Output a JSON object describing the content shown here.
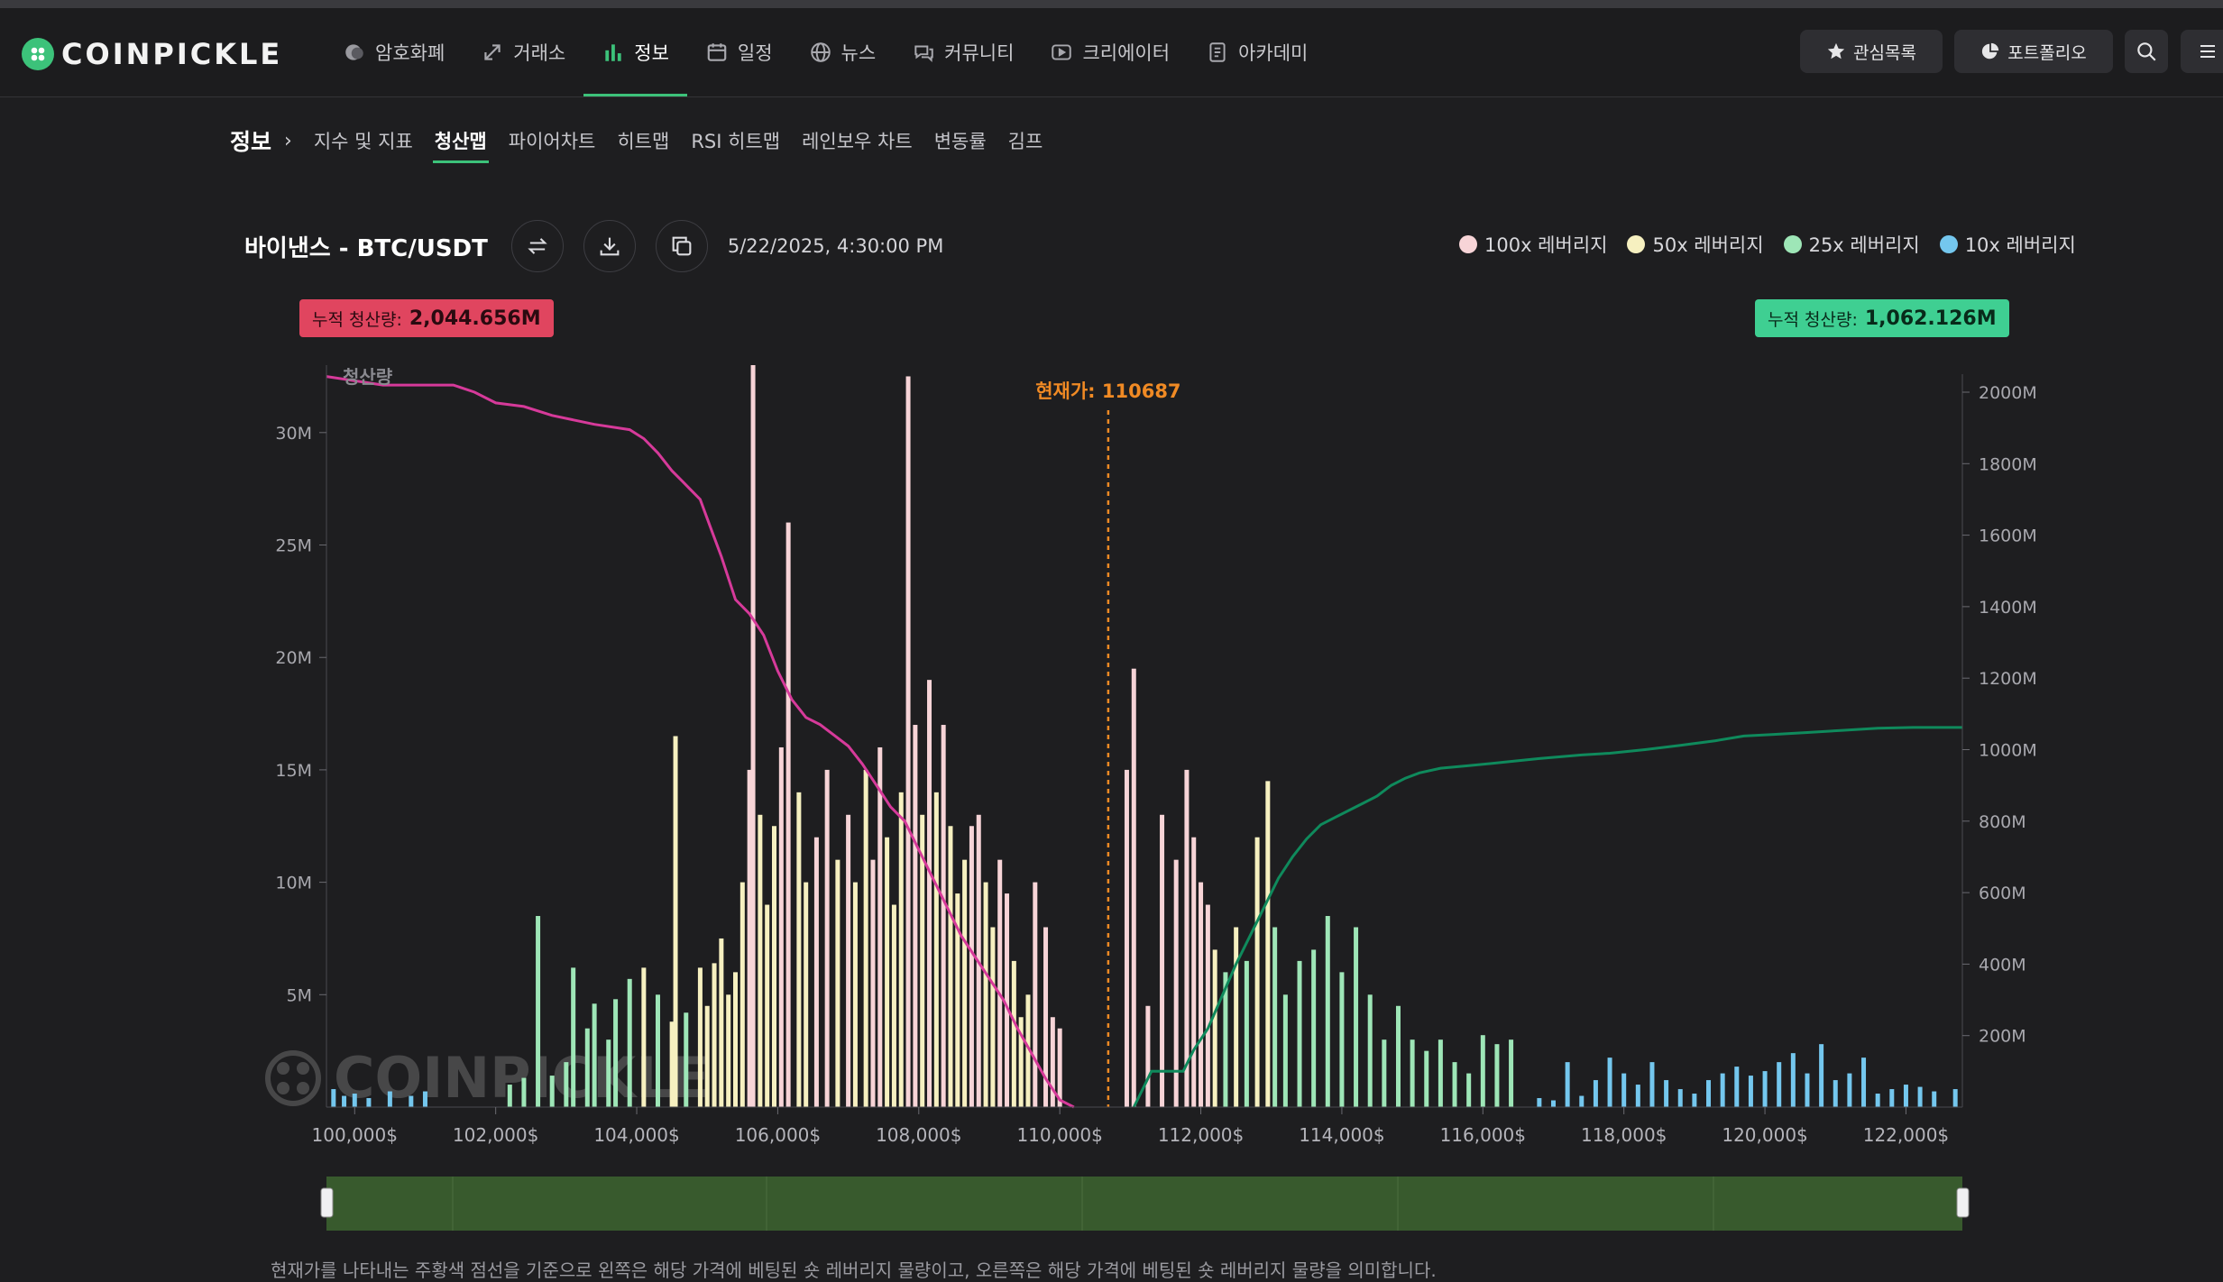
{
  "header": {
    "logo_text": "COINPICKLE",
    "nav": [
      {
        "label": "암호화폐",
        "icon": "coin-icon"
      },
      {
        "label": "거래소",
        "icon": "exchange-icon"
      },
      {
        "label": "정보",
        "icon": "bar-chart-icon",
        "active": true
      },
      {
        "label": "일정",
        "icon": "calendar-icon"
      },
      {
        "label": "뉴스",
        "icon": "globe-icon"
      },
      {
        "label": "커뮤니티",
        "icon": "chat-icon"
      },
      {
        "label": "크리에이터",
        "icon": "play-icon"
      },
      {
        "label": "아카데미",
        "icon": "book-icon"
      }
    ],
    "watchlist_label": "관심목록",
    "portfolio_label": "포트폴리오"
  },
  "subnav": {
    "crumb": "정보",
    "tabs": [
      "지수 및 지표",
      "청산맵",
      "파이어차트",
      "히트맵",
      "RSI 히트맵",
      "레인보우 차트",
      "변동률",
      "김프"
    ],
    "active_tab": "청산맵"
  },
  "chart_header": {
    "title": "바이낸스 - BTC/USDT",
    "timestamp": "5/22/2025, 4:30:00 PM"
  },
  "legend": [
    {
      "label": "100x 레버리지",
      "color": "#f7d4d7"
    },
    {
      "label": "50x 레버리지",
      "color": "#f6f0c0"
    },
    {
      "label": "25x 레버리지",
      "color": "#9ee6b7"
    },
    {
      "label": "10x 레버리지",
      "color": "#74c7ee"
    }
  ],
  "badges": {
    "left_label": "누적 청산량:",
    "left_value": "2,044.656M",
    "right_label": "누적 청산량:",
    "right_value": "1,062.126M"
  },
  "colors": {
    "short_curve": "#d63a9a",
    "long_curve": "#0f8a5c",
    "price_line": "#f08a24",
    "left_badge": "#e0455f",
    "right_badge": "#3fcf92"
  },
  "chart_data": {
    "type": "bar",
    "ylabel": "청산량",
    "current_price_label": "현재가: 110687",
    "current_price": 110687,
    "xlim": [
      99600,
      122800
    ],
    "x_ticks": [
      "100,000$",
      "102,000$",
      "104,000$",
      "106,000$",
      "108,000$",
      "110,000$",
      "112,000$",
      "114,000$",
      "116,000$",
      "118,000$",
      "120,000$",
      "122,000$"
    ],
    "x_tick_values": [
      100000,
      102000,
      104000,
      106000,
      108000,
      110000,
      112000,
      114000,
      116000,
      118000,
      120000,
      122000
    ],
    "y_left_ticks": [
      "5M",
      "10M",
      "15M",
      "20M",
      "25M",
      "30M"
    ],
    "y_left_tick_values": [
      5,
      10,
      15,
      20,
      25,
      30
    ],
    "ylim_left": [
      0,
      33
    ],
    "y_right_ticks": [
      "200M",
      "400M",
      "600M",
      "800M",
      "1000M",
      "1200M",
      "1400M",
      "1600M",
      "1800M",
      "2000M"
    ],
    "y_right_tick_values": [
      200,
      400,
      600,
      800,
      1000,
      1200,
      1400,
      1600,
      1800,
      2000
    ],
    "ylim_right": [
      0,
      2000
    ],
    "bars": [
      [
        99700,
        0.8,
        "10x"
      ],
      [
        99850,
        0.5,
        "10x"
      ],
      [
        100000,
        0.6,
        "10x"
      ],
      [
        100200,
        0.4,
        "10x"
      ],
      [
        100500,
        0.7,
        "10x"
      ],
      [
        100800,
        0.5,
        "10x"
      ],
      [
        101000,
        0.7,
        "10x"
      ],
      [
        102200,
        1.0,
        "25x"
      ],
      [
        102400,
        1.3,
        "25x"
      ],
      [
        102600,
        8.5,
        "25x"
      ],
      [
        102800,
        1.4,
        "25x"
      ],
      [
        103000,
        2.0,
        "25x"
      ],
      [
        103100,
        6.2,
        "25x"
      ],
      [
        103300,
        3.5,
        "25x"
      ],
      [
        103400,
        4.6,
        "25x"
      ],
      [
        103600,
        3.0,
        "25x"
      ],
      [
        103700,
        4.8,
        "25x"
      ],
      [
        103900,
        5.7,
        "25x"
      ],
      [
        104100,
        6.2,
        "50x"
      ],
      [
        104300,
        5.0,
        "25x"
      ],
      [
        104500,
        3.8,
        "50x"
      ],
      [
        104550,
        16.5,
        "50x"
      ],
      [
        104700,
        4.2,
        "25x"
      ],
      [
        104900,
        6.2,
        "50x"
      ],
      [
        105000,
        4.5,
        "50x"
      ],
      [
        105100,
        6.4,
        "50x"
      ],
      [
        105200,
        7.5,
        "50x"
      ],
      [
        105300,
        5.0,
        "50x"
      ],
      [
        105400,
        6.0,
        "50x"
      ],
      [
        105500,
        10.0,
        "50x"
      ],
      [
        105600,
        15.0,
        "100x"
      ],
      [
        105650,
        33.0,
        "100x"
      ],
      [
        105750,
        13.0,
        "50x"
      ],
      [
        105850,
        9.0,
        "50x"
      ],
      [
        105950,
        12.5,
        "50x"
      ],
      [
        106050,
        16.0,
        "100x"
      ],
      [
        106150,
        26.0,
        "100x"
      ],
      [
        106300,
        14.0,
        "50x"
      ],
      [
        106400,
        10.0,
        "50x"
      ],
      [
        106550,
        12.0,
        "100x"
      ],
      [
        106700,
        15.0,
        "100x"
      ],
      [
        106850,
        11.0,
        "50x"
      ],
      [
        107000,
        13.0,
        "100x"
      ],
      [
        107100,
        10.0,
        "50x"
      ],
      [
        107250,
        15.0,
        "50x"
      ],
      [
        107350,
        11.0,
        "100x"
      ],
      [
        107450,
        16.0,
        "100x"
      ],
      [
        107550,
        12.0,
        "50x"
      ],
      [
        107650,
        9.0,
        "50x"
      ],
      [
        107750,
        14.0,
        "50x"
      ],
      [
        107850,
        32.5,
        "100x"
      ],
      [
        107950,
        17.0,
        "100x"
      ],
      [
        108050,
        13.0,
        "50x"
      ],
      [
        108150,
        19.0,
        "100x"
      ],
      [
        108250,
        14.0,
        "50x"
      ],
      [
        108350,
        17.0,
        "100x"
      ],
      [
        108450,
        12.5,
        "50x"
      ],
      [
        108550,
        9.5,
        "50x"
      ],
      [
        108650,
        11.0,
        "50x"
      ],
      [
        108750,
        12.5,
        "100x"
      ],
      [
        108850,
        13.0,
        "100x"
      ],
      [
        108950,
        10.0,
        "50x"
      ],
      [
        109050,
        8.0,
        "50x"
      ],
      [
        109150,
        11.0,
        "100x"
      ],
      [
        109250,
        9.5,
        "100x"
      ],
      [
        109350,
        6.5,
        "50x"
      ],
      [
        109450,
        4.0,
        "50x"
      ],
      [
        109550,
        5.0,
        "50x"
      ],
      [
        109650,
        10.0,
        "100x"
      ],
      [
        109800,
        8.0,
        "100x"
      ],
      [
        109900,
        4.0,
        "100x"
      ],
      [
        110000,
        3.5,
        "100x"
      ],
      [
        110950,
        15.0,
        "100x"
      ],
      [
        111050,
        19.5,
        "100x"
      ],
      [
        111250,
        4.5,
        "100x"
      ],
      [
        111450,
        13.0,
        "100x"
      ],
      [
        111650,
        11.0,
        "100x"
      ],
      [
        111800,
        15.0,
        "100x"
      ],
      [
        111900,
        12.0,
        "100x"
      ],
      [
        112000,
        10.0,
        "100x"
      ],
      [
        112100,
        9.0,
        "100x"
      ],
      [
        112200,
        7.0,
        "50x"
      ],
      [
        112350,
        6.0,
        "25x"
      ],
      [
        112500,
        8.0,
        "50x"
      ],
      [
        112650,
        6.5,
        "25x"
      ],
      [
        112800,
        12.0,
        "50x"
      ],
      [
        112950,
        14.5,
        "50x"
      ],
      [
        113050,
        8.0,
        "25x"
      ],
      [
        113200,
        5.0,
        "25x"
      ],
      [
        113400,
        6.5,
        "25x"
      ],
      [
        113600,
        7.0,
        "25x"
      ],
      [
        113800,
        8.5,
        "25x"
      ],
      [
        114000,
        6.0,
        "25x"
      ],
      [
        114200,
        8.0,
        "25x"
      ],
      [
        114400,
        5.0,
        "25x"
      ],
      [
        114600,
        3.0,
        "25x"
      ],
      [
        114800,
        4.5,
        "25x"
      ],
      [
        115000,
        3.0,
        "25x"
      ],
      [
        115200,
        2.5,
        "25x"
      ],
      [
        115400,
        3.0,
        "25x"
      ],
      [
        115600,
        2.0,
        "25x"
      ],
      [
        115800,
        1.5,
        "25x"
      ],
      [
        116000,
        3.2,
        "25x"
      ],
      [
        116200,
        2.8,
        "25x"
      ],
      [
        116400,
        3.0,
        "25x"
      ],
      [
        116800,
        0.4,
        "10x"
      ],
      [
        117000,
        0.3,
        "10x"
      ],
      [
        117200,
        2.0,
        "10x"
      ],
      [
        117400,
        0.5,
        "10x"
      ],
      [
        117600,
        1.2,
        "10x"
      ],
      [
        117800,
        2.2,
        "10x"
      ],
      [
        118000,
        1.5,
        "10x"
      ],
      [
        118200,
        1.0,
        "10x"
      ],
      [
        118400,
        2.0,
        "10x"
      ],
      [
        118600,
        1.2,
        "10x"
      ],
      [
        118800,
        0.8,
        "10x"
      ],
      [
        119000,
        0.6,
        "10x"
      ],
      [
        119200,
        1.2,
        "10x"
      ],
      [
        119400,
        1.5,
        "10x"
      ],
      [
        119600,
        1.8,
        "10x"
      ],
      [
        119800,
        1.4,
        "10x"
      ],
      [
        120000,
        1.6,
        "10x"
      ],
      [
        120200,
        2.0,
        "10x"
      ],
      [
        120400,
        2.4,
        "10x"
      ],
      [
        120600,
        1.5,
        "10x"
      ],
      [
        120800,
        2.8,
        "10x"
      ],
      [
        121000,
        1.2,
        "10x"
      ],
      [
        121200,
        1.5,
        "10x"
      ],
      [
        121400,
        2.2,
        "10x"
      ],
      [
        121600,
        0.6,
        "10x"
      ],
      [
        121800,
        0.8,
        "10x"
      ],
      [
        122000,
        1.0,
        "10x"
      ],
      [
        122200,
        0.9,
        "10x"
      ],
      [
        122400,
        0.7,
        "10x"
      ],
      [
        122700,
        0.8,
        "10x"
      ]
    ],
    "short_cumulative": [
      [
        99600,
        2044
      ],
      [
        100400,
        2020
      ],
      [
        101400,
        2020
      ],
      [
        101700,
        2000
      ],
      [
        102000,
        1970
      ],
      [
        102400,
        1960
      ],
      [
        102800,
        1935
      ],
      [
        103400,
        1910
      ],
      [
        103900,
        1895
      ],
      [
        104100,
        1870
      ],
      [
        104300,
        1830
      ],
      [
        104500,
        1780
      ],
      [
        104650,
        1750
      ],
      [
        104900,
        1700
      ],
      [
        105050,
        1620
      ],
      [
        105200,
        1540
      ],
      [
        105400,
        1420
      ],
      [
        105600,
        1380
      ],
      [
        105800,
        1320
      ],
      [
        106000,
        1220
      ],
      [
        106200,
        1140
      ],
      [
        106400,
        1090
      ],
      [
        106600,
        1070
      ],
      [
        106800,
        1040
      ],
      [
        107000,
        1010
      ],
      [
        107200,
        960
      ],
      [
        107400,
        900
      ],
      [
        107600,
        840
      ],
      [
        107800,
        800
      ],
      [
        108000,
        720
      ],
      [
        108200,
        640
      ],
      [
        108400,
        560
      ],
      [
        108600,
        480
      ],
      [
        108800,
        420
      ],
      [
        109000,
        360
      ],
      [
        109200,
        300
      ],
      [
        109400,
        220
      ],
      [
        109600,
        150
      ],
      [
        109800,
        80
      ],
      [
        110000,
        20
      ],
      [
        110200,
        0
      ]
    ],
    "long_cumulative": [
      [
        111050,
        0
      ],
      [
        111300,
        100
      ],
      [
        111750,
        100
      ],
      [
        111900,
        160
      ],
      [
        112100,
        220
      ],
      [
        112300,
        310
      ],
      [
        112500,
        400
      ],
      [
        112700,
        480
      ],
      [
        112900,
        560
      ],
      [
        113100,
        640
      ],
      [
        113300,
        700
      ],
      [
        113500,
        750
      ],
      [
        113700,
        790
      ],
      [
        113900,
        810
      ],
      [
        114100,
        830
      ],
      [
        114300,
        850
      ],
      [
        114500,
        870
      ],
      [
        114700,
        900
      ],
      [
        114900,
        920
      ],
      [
        115100,
        935
      ],
      [
        115400,
        948
      ],
      [
        115800,
        955
      ],
      [
        116300,
        965
      ],
      [
        116800,
        975
      ],
      [
        117400,
        985
      ],
      [
        117800,
        990
      ],
      [
        118300,
        1000
      ],
      [
        118800,
        1012
      ],
      [
        119300,
        1025
      ],
      [
        119700,
        1038
      ],
      [
        120100,
        1042
      ],
      [
        120600,
        1048
      ],
      [
        121100,
        1054
      ],
      [
        121600,
        1060
      ],
      [
        122100,
        1062
      ],
      [
        122800,
        1062
      ]
    ],
    "watermark": "COINPICKLE"
  },
  "footnote": "현재가를 나타내는 주황색 점선을 기준으로 왼쪽은 해당 가격에 베팅된 숏 레버리지 물량이고, 오른쪽은 해당 가격에 베팅된 숏 레버리지 물량을 의미합니다."
}
